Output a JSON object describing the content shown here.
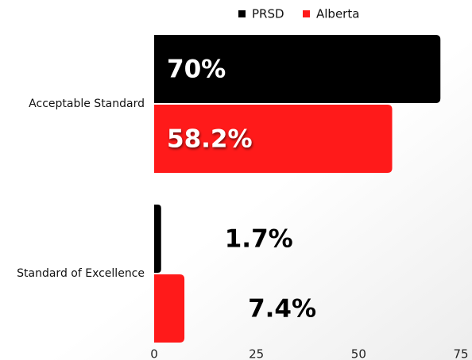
{
  "chart_data": {
    "type": "hbar",
    "categories": [
      "Acceptable Standard",
      "Standard of Excellence"
    ],
    "series": [
      {
        "name": "PRSD",
        "color": "#000000",
        "values": [
          70,
          1.7
        ],
        "value_labels": [
          "70%",
          "1.7%"
        ]
      },
      {
        "name": "Alberta",
        "color": "#ff1a1a",
        "values": [
          58.2,
          7.4
        ],
        "value_labels": [
          "58.2%",
          "7.4%"
        ]
      }
    ],
    "xlim": [
      0,
      75
    ],
    "xticks": [
      0,
      25,
      50,
      75
    ],
    "legend": "top"
  }
}
